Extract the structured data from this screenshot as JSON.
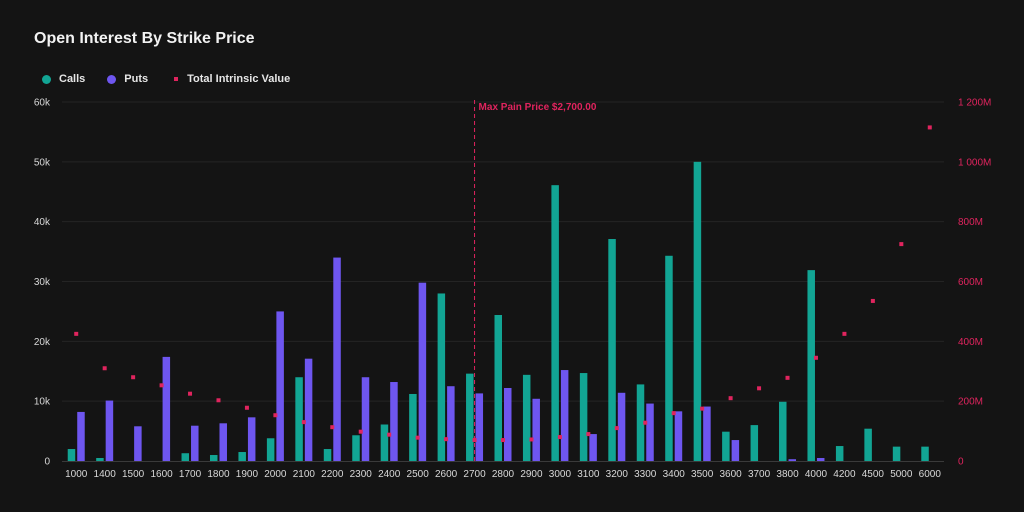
{
  "title": "Open Interest By Strike Price",
  "legend": {
    "calls": "Calls",
    "puts": "Puts",
    "intrinsic": "Total Intrinsic Value"
  },
  "colors": {
    "calls": "#12a594",
    "puts": "#6e56f0",
    "intrinsic": "#e0245e"
  },
  "annotation": {
    "label": "Max Pain Price $2,700.00",
    "strike": "2700"
  },
  "chart_data": {
    "type": "bar",
    "title": "Open Interest By Strike Price",
    "categories": [
      "1000",
      "1400",
      "1500",
      "1600",
      "1700",
      "1800",
      "1900",
      "2000",
      "2100",
      "2200",
      "2300",
      "2400",
      "2500",
      "2600",
      "2700",
      "2800",
      "2900",
      "3000",
      "3100",
      "3200",
      "3300",
      "3400",
      "3500",
      "3600",
      "3700",
      "3800",
      "4000",
      "4200",
      "4500",
      "5000",
      "6000"
    ],
    "series": [
      {
        "name": "Calls",
        "axis": "left",
        "values": [
          2000,
          500,
          0,
          0,
          1300,
          1000,
          1500,
          3800,
          14000,
          2000,
          4300,
          6100,
          11200,
          28000,
          14600,
          24400,
          14400,
          46100,
          14700,
          37100,
          12800,
          34300,
          50000,
          4900,
          6000,
          9900,
          31900,
          2500,
          5400,
          2400,
          2400
        ]
      },
      {
        "name": "Puts",
        "axis": "left",
        "values": [
          8200,
          10100,
          5800,
          17400,
          5900,
          6300,
          7300,
          25000,
          17100,
          34000,
          14000,
          13200,
          29800,
          12500,
          11300,
          12200,
          10400,
          15200,
          4500,
          11400,
          9600,
          8300,
          9100,
          3500,
          0,
          300,
          500,
          0,
          0,
          0,
          0
        ]
      },
      {
        "name": "Total Intrinsic Value",
        "axis": "right",
        "values": [
          425,
          310,
          280,
          253,
          225,
          203,
          178,
          153,
          130,
          113,
          98,
          88,
          78,
          73,
          70,
          70,
          72,
          80,
          90,
          110,
          128,
          160,
          175,
          210,
          243,
          278,
          345,
          425,
          535,
          725,
          1115
        ]
      }
    ],
    "y_left": {
      "min": 0,
      "max": 60000,
      "ticks": [
        0,
        10000,
        20000,
        30000,
        40000,
        50000,
        60000
      ],
      "tick_labels": [
        "0",
        "10k",
        "20k",
        "30k",
        "40k",
        "50k",
        "60k"
      ]
    },
    "y_right": {
      "min": 0,
      "max": 1200,
      "ticks": [
        0,
        200,
        400,
        600,
        800,
        1000,
        1200
      ],
      "tick_labels": [
        "0",
        "200M",
        "400M",
        "600M",
        "800M",
        "1 000M",
        "1 200M"
      ]
    },
    "legend_position": "top-left",
    "grid": true
  }
}
